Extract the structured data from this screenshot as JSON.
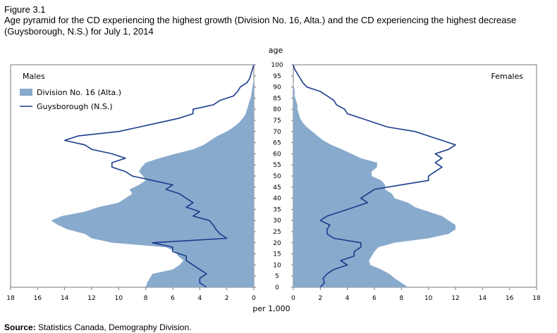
{
  "figure_label": "Figure 3.1",
  "title": "Age pyramid for the CD experiencing the highest growth (Division No. 16, Alta.) and the CD experiencing the highest decrease (Guysborough, N.S.) for July 1, 2014",
  "source_label": "Source:",
  "source_text": " Statistics Canada, Demography Division.",
  "colors": {
    "fill": "#88aacc",
    "line": "#1a3b8c",
    "frame": "#777777"
  },
  "chart_data": {
    "type": "area",
    "ylabel": "age",
    "xlabel": "per 1,000",
    "left_panel_label": "Males",
    "right_panel_label": "Females",
    "age_ticks": [
      "100",
      "95",
      "90",
      "85",
      "80",
      "75",
      "70",
      "65",
      "60",
      "55",
      "50",
      "45",
      "40",
      "35",
      "30",
      "25",
      "20",
      "15",
      "10",
      "5",
      "0"
    ],
    "left_ticks": [
      "18",
      "16",
      "14",
      "12",
      "10",
      "8",
      "6",
      "4",
      "2",
      "0"
    ],
    "right_ticks": [
      "0",
      "2",
      "4",
      "6",
      "8",
      "10",
      "12",
      "14",
      "16",
      "18"
    ],
    "xlim": [
      0,
      18
    ],
    "ylim": [
      0,
      100
    ],
    "legend": [
      {
        "name": "Division No. 16 (Alta.)",
        "kind": "area"
      },
      {
        "name": "Guysborough (N.S.)",
        "kind": "line"
      }
    ],
    "ages": [
      0,
      2,
      4,
      6,
      8,
      10,
      12,
      14,
      16,
      18,
      20,
      22,
      24,
      26,
      28,
      30,
      32,
      34,
      36,
      38,
      40,
      42,
      44,
      46,
      48,
      50,
      52,
      54,
      56,
      58,
      60,
      62,
      64,
      66,
      68,
      70,
      72,
      74,
      76,
      78,
      80,
      82,
      84,
      86,
      88,
      90,
      92,
      94,
      96,
      98,
      100
    ],
    "series": [
      {
        "name": "Division No. 16 (Alta.)",
        "males": [
          8.0,
          7.9,
          7.7,
          7.5,
          6.0,
          5.5,
          5.2,
          5.6,
          5.8,
          6.5,
          10.5,
          12.0,
          12.5,
          13.8,
          14.5,
          15.0,
          14.2,
          12.5,
          11.5,
          10.0,
          9.5,
          9.0,
          9.2,
          8.5,
          8.0,
          8.2,
          8.5,
          8.3,
          8.0,
          7.0,
          5.8,
          4.5,
          3.7,
          3.2,
          2.7,
          2.0,
          1.5,
          1.1,
          0.8,
          0.6,
          0.5,
          0.4,
          0.3,
          0.2,
          0.15,
          0.1,
          0.05,
          0.0,
          0.0,
          0.0,
          0.0
        ],
        "females": [
          8.5,
          8.0,
          7.5,
          7.1,
          6.5,
          5.7,
          5.6,
          5.8,
          6.0,
          6.3,
          7.5,
          10.0,
          11.5,
          12.0,
          12.0,
          11.5,
          11.0,
          10.0,
          9.0,
          8.5,
          7.5,
          7.3,
          6.8,
          6.8,
          6.5,
          5.8,
          5.8,
          6.2,
          6.2,
          5.0,
          4.3,
          3.6,
          2.8,
          2.2,
          1.8,
          1.4,
          1.0,
          0.7,
          0.5,
          0.4,
          0.3,
          0.3,
          0.2,
          0.1,
          0.1,
          0.05,
          0.0,
          0.0,
          0.0,
          0.0,
          0.0
        ]
      },
      {
        "name": "Guysborough (N.S.)",
        "males": [
          3.5,
          4.0,
          4.0,
          3.5,
          4.0,
          4.5,
          5.0,
          5.0,
          6.0,
          6.0,
          7.5,
          2.0,
          2.5,
          2.8,
          3.0,
          3.3,
          4.5,
          4.0,
          5.0,
          4.5,
          5.0,
          5.5,
          6.5,
          6.0,
          7.5,
          9.0,
          9.5,
          10.5,
          10.5,
          9.5,
          10.5,
          12.0,
          12.5,
          14.0,
          13.0,
          10.0,
          8.5,
          7.0,
          5.5,
          4.5,
          4.5,
          3.0,
          2.5,
          1.5,
          1.2,
          1.0,
          0.5,
          0.3,
          0.2,
          0.1,
          0.0
        ],
        "females": [
          2.0,
          2.3,
          2.2,
          2.5,
          3.0,
          4.0,
          3.5,
          4.5,
          4.5,
          5.0,
          5.0,
          3.0,
          2.5,
          2.5,
          2.7,
          2.0,
          2.5,
          3.5,
          4.5,
          5.5,
          5.0,
          5.5,
          6.0,
          8.0,
          10.0,
          10.0,
          10.5,
          11.0,
          10.5,
          11.0,
          10.5,
          11.5,
          12.0,
          11.0,
          10.0,
          9.0,
          7.0,
          6.0,
          5.0,
          4.0,
          3.8,
          3.2,
          3.0,
          2.5,
          2.0,
          1.0,
          0.7,
          0.5,
          0.3,
          0.1,
          0.0
        ]
      }
    ]
  }
}
